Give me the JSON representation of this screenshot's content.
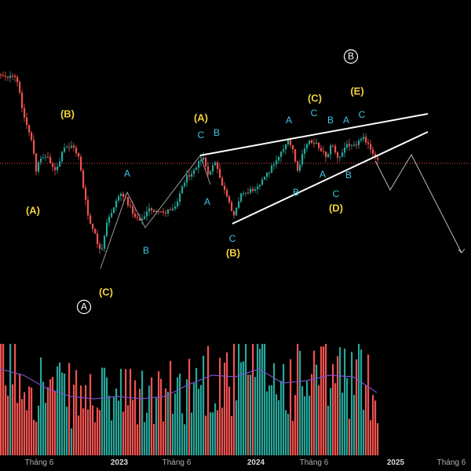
{
  "chart_data": {
    "type": "candlestick",
    "grid": false,
    "colors": {
      "background": "#000000",
      "up": "#26a69a",
      "down": "#ef5350",
      "trendline": "#ffffff",
      "wave_path": "#9e9e9e",
      "forecast": "#bdbdbd",
      "price_line": "#ef5350",
      "volume_ma": "#7b4fc9",
      "label_major": "#f0d23a",
      "label_minor": "#3fc8e8",
      "label_circle": "#ffffff"
    },
    "x_ticks": [
      {
        "label": "Tháng 6",
        "x": 50,
        "bold": false
      },
      {
        "label": "2023",
        "x": 152,
        "bold": true
      },
      {
        "label": "Tháng 6",
        "x": 225,
        "bold": false
      },
      {
        "label": "2024",
        "x": 326,
        "bold": true
      },
      {
        "label": "Tháng 6",
        "x": 400,
        "bold": false
      },
      {
        "label": "2025",
        "x": 504,
        "bold": true
      },
      {
        "label": "Tháng 6",
        "x": 575,
        "bold": false
      }
    ],
    "price_line_level": 208,
    "anchors": [
      [
        0,
        95
      ],
      [
        20,
        100
      ],
      [
        30,
        150
      ],
      [
        40,
        180
      ],
      [
        45,
        220
      ],
      [
        50,
        200
      ],
      [
        60,
        200
      ],
      [
        70,
        220
      ],
      [
        80,
        190
      ],
      [
        90,
        185
      ],
      [
        100,
        200
      ],
      [
        105,
        240
      ],
      [
        112,
        280
      ],
      [
        120,
        300
      ],
      [
        128,
        325
      ],
      [
        135,
        285
      ],
      [
        145,
        260
      ],
      [
        152,
        245
      ],
      [
        160,
        255
      ],
      [
        170,
        275
      ],
      [
        180,
        280
      ],
      [
        190,
        265
      ],
      [
        200,
        272
      ],
      [
        210,
        270
      ],
      [
        222,
        262
      ],
      [
        235,
        228
      ],
      [
        250,
        210
      ],
      [
        258,
        200
      ],
      [
        264,
        225
      ],
      [
        272,
        205
      ],
      [
        280,
        230
      ],
      [
        288,
        252
      ],
      [
        296,
        275
      ],
      [
        305,
        248
      ],
      [
        320,
        242
      ],
      [
        335,
        228
      ],
      [
        350,
        205
      ],
      [
        365,
        180
      ],
      [
        372,
        190
      ],
      [
        378,
        220
      ],
      [
        385,
        195
      ],
      [
        392,
        178
      ],
      [
        400,
        182
      ],
      [
        408,
        190
      ],
      [
        415,
        200
      ],
      [
        422,
        182
      ],
      [
        430,
        205
      ],
      [
        438,
        188
      ],
      [
        445,
        182
      ],
      [
        455,
        182
      ],
      [
        462,
        172
      ],
      [
        470,
        190
      ],
      [
        478,
        205
      ]
    ],
    "volume_ma": [
      [
        0,
        470
      ],
      [
        30,
        478
      ],
      [
        60,
        495
      ],
      [
        90,
        505
      ],
      [
        120,
        508
      ],
      [
        150,
        505
      ],
      [
        180,
        508
      ],
      [
        210,
        505
      ],
      [
        240,
        490
      ],
      [
        270,
        478
      ],
      [
        300,
        480
      ],
      [
        330,
        470
      ],
      [
        360,
        488
      ],
      [
        390,
        485
      ],
      [
        420,
        478
      ],
      [
        450,
        480
      ],
      [
        480,
        500
      ]
    ],
    "wave_path": [
      [
        128,
        342
      ],
      [
        162,
        245
      ],
      [
        185,
        290
      ],
      [
        255,
        198
      ],
      [
        268,
        235
      ]
    ],
    "upper_trendline": [
      [
        255,
        198
      ],
      [
        545,
        145
      ]
    ],
    "lower_trendline": [
      [
        296,
        285
      ],
      [
        545,
        168
      ]
    ],
    "forecast_path": [
      [
        478,
        205
      ],
      [
        497,
        242
      ],
      [
        524,
        197
      ],
      [
        588,
        322
      ]
    ],
    "labels": [
      {
        "text": "(B)",
        "x": 86,
        "y": 146,
        "style": "major"
      },
      {
        "text": "(A)",
        "x": 42,
        "y": 269,
        "style": "major"
      },
      {
        "text": "(C)",
        "x": 135,
        "y": 373,
        "style": "major"
      },
      {
        "text": "A",
        "x": 162,
        "y": 222,
        "style": "minor"
      },
      {
        "text": "B",
        "x": 186,
        "y": 320,
        "style": "minor"
      },
      {
        "text": "(A)",
        "x": 256,
        "y": 151,
        "style": "major"
      },
      {
        "text": "C",
        "x": 256,
        "y": 173,
        "style": "minor"
      },
      {
        "text": "B",
        "x": 276,
        "y": 170,
        "style": "minor"
      },
      {
        "text": "A",
        "x": 264,
        "y": 258,
        "style": "minor"
      },
      {
        "text": "C",
        "x": 296,
        "y": 305,
        "style": "minor"
      },
      {
        "text": "(B)",
        "x": 297,
        "y": 323,
        "style": "major"
      },
      {
        "text": "(C)",
        "x": 401,
        "y": 126,
        "style": "major"
      },
      {
        "text": "A",
        "x": 368,
        "y": 154,
        "style": "minor"
      },
      {
        "text": "C",
        "x": 400,
        "y": 145,
        "style": "minor"
      },
      {
        "text": "B",
        "x": 421,
        "y": 154,
        "style": "minor"
      },
      {
        "text": "A",
        "x": 441,
        "y": 154,
        "style": "minor"
      },
      {
        "text": "(E)",
        "x": 455,
        "y": 117,
        "style": "major"
      },
      {
        "text": "C",
        "x": 461,
        "y": 147,
        "style": "minor"
      },
      {
        "text": "B",
        "x": 377,
        "y": 246,
        "style": "minor"
      },
      {
        "text": "A",
        "x": 411,
        "y": 223,
        "style": "minor"
      },
      {
        "text": "B",
        "x": 444,
        "y": 224,
        "style": "minor"
      },
      {
        "text": "C",
        "x": 428,
        "y": 248,
        "style": "minor"
      },
      {
        "text": "(D)",
        "x": 428,
        "y": 266,
        "style": "major"
      }
    ],
    "circle_labels": [
      {
        "text": "B",
        "x": 447,
        "y": 72
      },
      {
        "text": "A",
        "x": 107,
        "y": 391
      }
    ]
  }
}
